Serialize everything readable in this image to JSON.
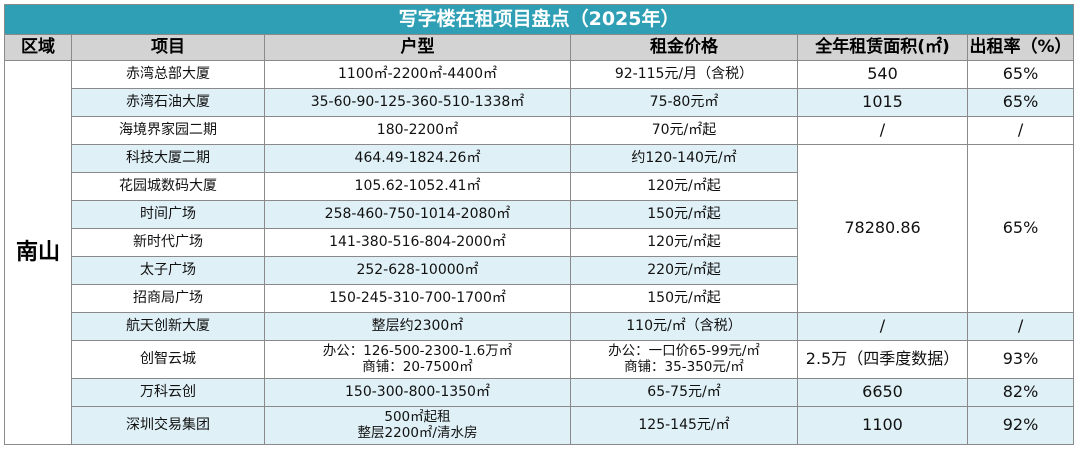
{
  "title": "写字楼在租项目盘点（2025年）",
  "headers": [
    "区域",
    "项目",
    "户型",
    "租金价格",
    "全年租赁面积(㎡)",
    "出租率（%）"
  ],
  "region": "南山",
  "rows": [
    {
      "project": "赤湾总部大厦",
      "unit": "1100㎡-2200㎡-4400㎡",
      "rent": "92-115元/月（含税）",
      "area": "540",
      "rate": "65%"
    },
    {
      "project": "赤湾石油大厦",
      "unit": "35-60-90-125-360-510-1338㎡",
      "rent": "75-80元㎡",
      "area": "1015",
      "rate": "65%"
    },
    {
      "project": "海境界家园二期",
      "unit": "180-2200㎡",
      "rent": "70元/㎡起",
      "area": "/",
      "rate": "/"
    },
    {
      "project": "科技大厦二期",
      "unit": "464.49-1824.26㎡",
      "rent": "约120-140元/㎡"
    },
    {
      "project": "花园城数码大厦",
      "unit": "105.62-1052.41㎡",
      "rent": "120元/㎡起"
    },
    {
      "project": "时间广场",
      "unit": "258-460-750-1014-2080㎡",
      "rent": "150元/㎡起"
    },
    {
      "project": "新时代广场",
      "unit": "141-380-516-804-2000㎡",
      "rent": "120元/㎡起"
    },
    {
      "project": "太子广场",
      "unit": "252-628-10000㎡",
      "rent": "220元/㎡起"
    },
    {
      "project": "招商局广场",
      "unit": "150-245-310-700-1700㎡",
      "rent": "150元/㎡起"
    },
    {
      "project": "航天创新大厦",
      "unit": "整层约2300㎡",
      "rent": "110元/㎡（含税）",
      "area": "/",
      "rate": "/"
    },
    {
      "project": "创智云城",
      "unit_lines": [
        "办公：126-500-2300-1.6万㎡",
        "商铺：20-7500㎡"
      ],
      "rent_lines": [
        "办公：一口价65-99元/㎡",
        "商铺：35-350元/㎡"
      ],
      "area": "2.5万（四季度数据）",
      "rate": "93%"
    },
    {
      "project": "万科云创",
      "unit": "150-300-800-1350㎡",
      "rent": "65-75元/㎡",
      "area": "6650",
      "rate": "82%"
    },
    {
      "project": "深圳交易集团",
      "unit_lines": [
        "500㎡起租",
        "整层2200㎡/清水房"
      ],
      "rent": "125-145元/㎡",
      "area": "1100",
      "rate": "92%"
    }
  ],
  "merged_group": {
    "area": "78280.86",
    "rate": "65%"
  }
}
